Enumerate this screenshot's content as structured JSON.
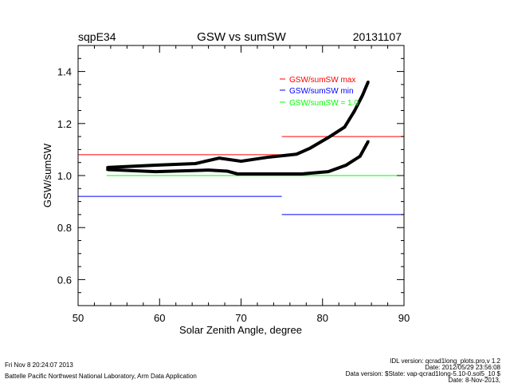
{
  "header": {
    "site": "sqpE34",
    "date": "20131107"
  },
  "chart_data": {
    "type": "line",
    "title": "GSW vs sumSW",
    "xlabel": "Solar Zenith Angle, degree",
    "ylabel": "GSW/sumSW",
    "xlim": [
      50,
      90
    ],
    "ylim": [
      0.5,
      1.5
    ],
    "xticks": [
      "50",
      "60",
      "70",
      "80",
      "90"
    ],
    "yticks": [
      "0.6",
      "0.8",
      "1.0",
      "1.2",
      "1.4"
    ],
    "xtick_values": [
      50,
      60,
      70,
      80,
      90
    ],
    "ytick_values": [
      0.6,
      0.8,
      1.0,
      1.2,
      1.4
    ],
    "legend": [
      {
        "label": "GSW/sumSW max",
        "color": "#ff0000"
      },
      {
        "label": "GSW/sumSW min",
        "color": "#0000ff"
      },
      {
        "label": "GSW/sumSW = 1.0",
        "color": "#00ff00"
      }
    ],
    "legend_position": "top-right",
    "limit_lines": [
      {
        "name": "max",
        "color": "#ff0000",
        "segments": [
          [
            50,
            75,
            1.08
          ],
          [
            75,
            90,
            1.15
          ]
        ]
      },
      {
        "name": "min",
        "color": "#0000ff",
        "segments": [
          [
            50,
            75,
            0.92
          ],
          [
            75,
            90,
            0.85
          ]
        ]
      },
      {
        "name": "unity",
        "color": "#00ff00",
        "segments": [
          [
            53.5,
            90,
            1.0
          ]
        ]
      }
    ],
    "series": [
      {
        "name": "upper",
        "color": "#000000",
        "x": [
          53.6,
          59.5,
          64.4,
          67.3,
          70.0,
          73.2,
          76.8,
          78.4,
          80.7,
          82.7,
          83.9,
          84.9,
          85.6
        ],
        "y": [
          1.031,
          1.04,
          1.046,
          1.067,
          1.055,
          1.07,
          1.082,
          1.104,
          1.146,
          1.186,
          1.247,
          1.308,
          1.36
        ]
      },
      {
        "name": "lower",
        "color": "#000000",
        "x": [
          53.6,
          59.5,
          66.0,
          68.3,
          69.6,
          77.4,
          80.7,
          82.9,
          84.6,
          85.6
        ],
        "y": [
          1.023,
          1.015,
          1.021,
          1.017,
          1.006,
          1.006,
          1.015,
          1.04,
          1.074,
          1.131
        ]
      }
    ]
  },
  "footer": {
    "timestamp": "Fri Nov  8 20:24:07 2013",
    "org": "Battelle Pacific Northwest National Laboratory, Arm Data Application",
    "idl_version": "IDL version: qcrad1long_plots.pro,v 1.2",
    "idl_date": "Date: 2012/05/29 23:56:08",
    "data_version": "Data version: $State: vap-qcrad1long-5.10-0.sol5_10 $",
    "data_date": "Date: 8-Nov-2013,"
  }
}
